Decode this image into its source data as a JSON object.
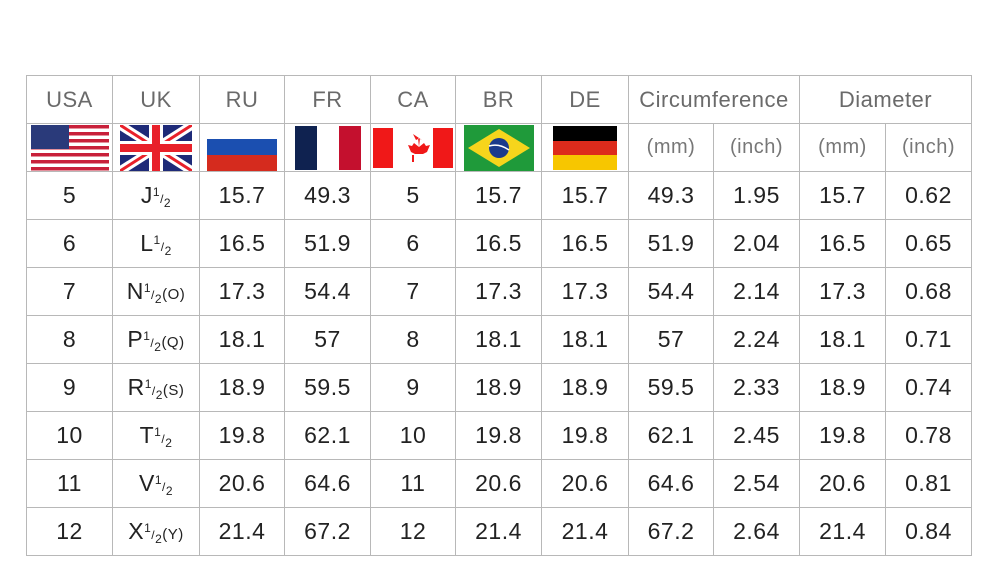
{
  "headers": {
    "usa": "USA",
    "uk": "UK",
    "ru": "RU",
    "fr": "FR",
    "ca": "CA",
    "br": "BR",
    "de": "DE",
    "circumference": "Circumference",
    "diameter": "Diameter"
  },
  "units": {
    "circ_mm": "(mm)",
    "circ_inch": "(inch)",
    "dia_mm": "(mm)",
    "dia_inch": "(inch)"
  },
  "flags": [
    "usa-flag-icon",
    "uk-flag-icon",
    "russia-flag-icon",
    "france-flag-icon",
    "canada-flag-icon",
    "brazil-flag-icon",
    "germany-flag-icon"
  ],
  "fraction": {
    "num": "1",
    "den": "2"
  },
  "rows": [
    {
      "usa": "5",
      "uk": "J",
      "uk_alt": "",
      "ru": "15.7",
      "fr": "49.3",
      "ca": "5",
      "br": "15.7",
      "de": "15.7",
      "circ_mm": "49.3",
      "circ_inch": "1.95",
      "dia_mm": "15.7",
      "dia_inch": "0.62"
    },
    {
      "usa": "6",
      "uk": "L",
      "uk_alt": "",
      "ru": "16.5",
      "fr": "51.9",
      "ca": "6",
      "br": "16.5",
      "de": "16.5",
      "circ_mm": "51.9",
      "circ_inch": "2.04",
      "dia_mm": "16.5",
      "dia_inch": "0.65"
    },
    {
      "usa": "7",
      "uk": "N",
      "uk_alt": "(O)",
      "ru": "17.3",
      "fr": "54.4",
      "ca": "7",
      "br": "17.3",
      "de": "17.3",
      "circ_mm": "54.4",
      "circ_inch": "2.14",
      "dia_mm": "17.3",
      "dia_inch": "0.68"
    },
    {
      "usa": "8",
      "uk": "P",
      "uk_alt": "(Q)",
      "ru": "18.1",
      "fr": "57",
      "ca": "8",
      "br": "18.1",
      "de": "18.1",
      "circ_mm": "57",
      "circ_inch": "2.24",
      "dia_mm": "18.1",
      "dia_inch": "0.71"
    },
    {
      "usa": "9",
      "uk": "R",
      "uk_alt": "(S)",
      "ru": "18.9",
      "fr": "59.5",
      "ca": "9",
      "br": "18.9",
      "de": "18.9",
      "circ_mm": "59.5",
      "circ_inch": "2.33",
      "dia_mm": "18.9",
      "dia_inch": "0.74"
    },
    {
      "usa": "10",
      "uk": "T",
      "uk_alt": "",
      "ru": "19.8",
      "fr": "62.1",
      "ca": "10",
      "br": "19.8",
      "de": "19.8",
      "circ_mm": "62.1",
      "circ_inch": "2.45",
      "dia_mm": "19.8",
      "dia_inch": "0.78"
    },
    {
      "usa": "11",
      "uk": "V",
      "uk_alt": "",
      "ru": "20.6",
      "fr": "64.6",
      "ca": "11",
      "br": "20.6",
      "de": "20.6",
      "circ_mm": "64.6",
      "circ_inch": "2.54",
      "dia_mm": "20.6",
      "dia_inch": "0.81"
    },
    {
      "usa": "12",
      "uk": "X",
      "uk_alt": "(Y)",
      "ru": "21.4",
      "fr": "67.2",
      "ca": "12",
      "br": "21.4",
      "de": "21.4",
      "circ_mm": "67.2",
      "circ_inch": "2.64",
      "dia_mm": "21.4",
      "dia_inch": "0.84"
    }
  ]
}
